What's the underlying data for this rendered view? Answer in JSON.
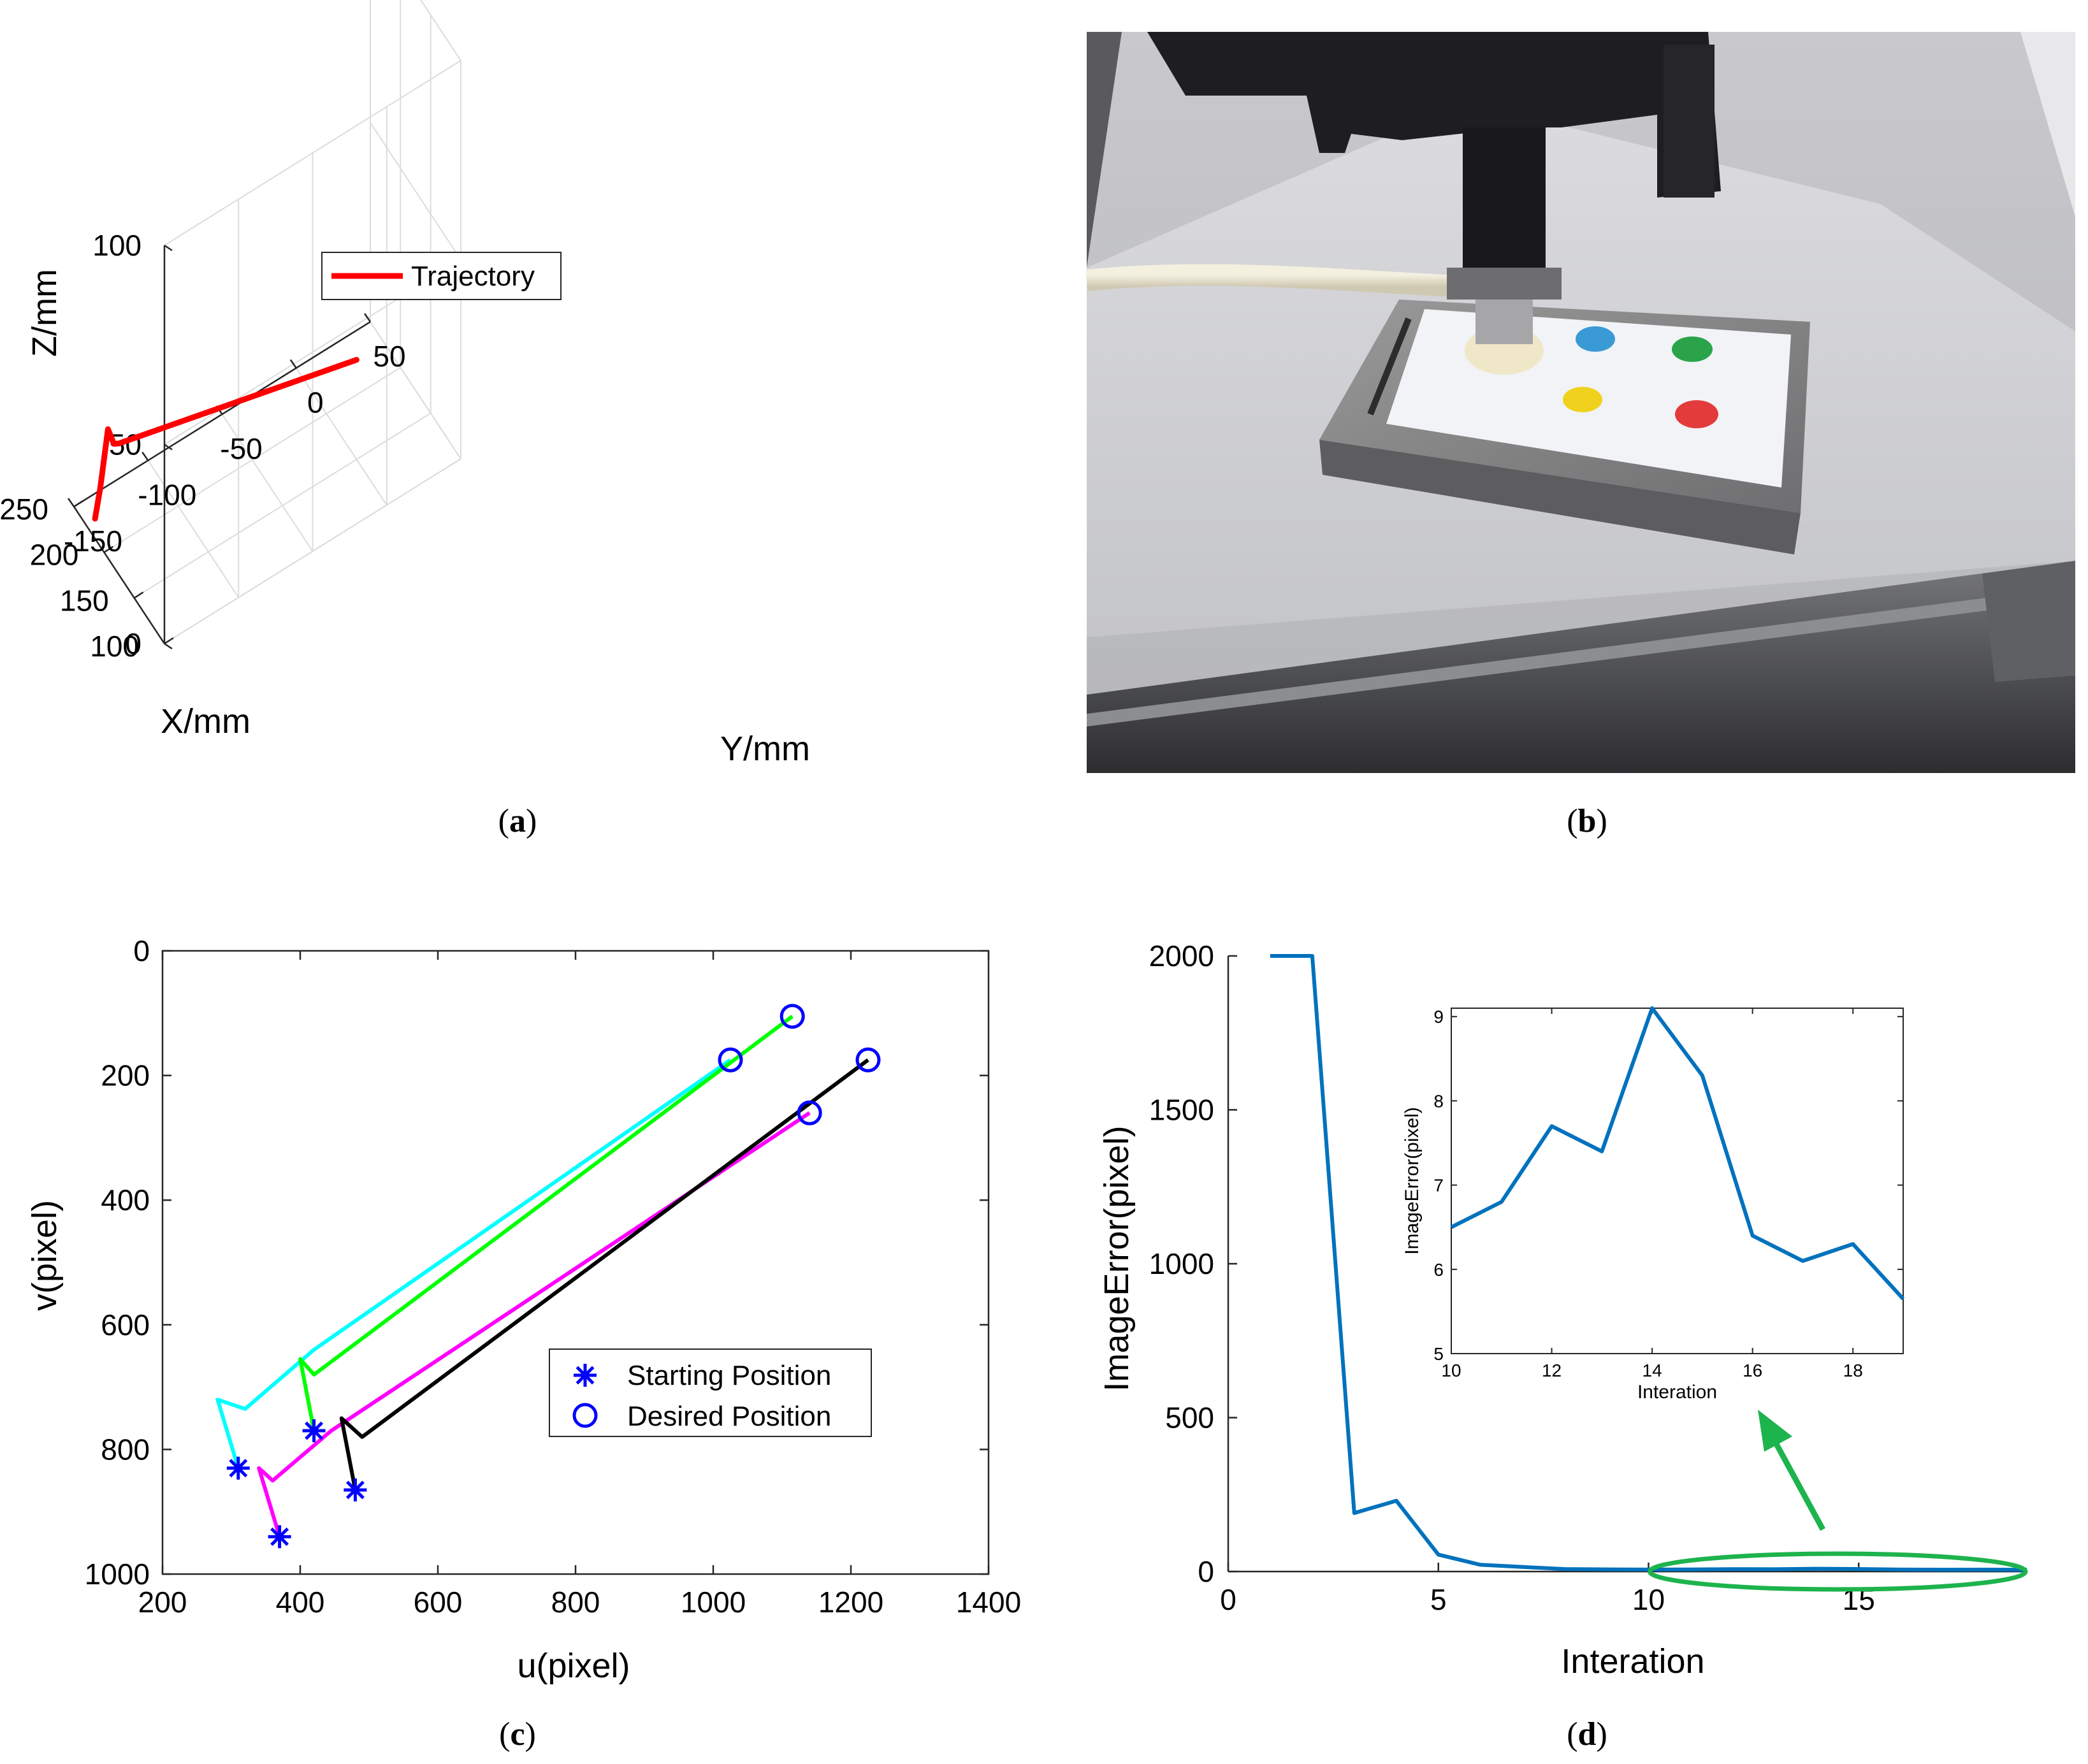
{
  "chart_data": [
    {
      "id": "a",
      "type": "line",
      "projection": "3d",
      "caption": "a",
      "xlabel": "X/mm",
      "ylabel": "Y/mm",
      "zlabel": "Z/mm",
      "xlim": [
        100,
        250
      ],
      "ylim": [
        -150,
        50
      ],
      "zlim": [
        0,
        100
      ],
      "x_ticks": [
        100,
        150,
        200,
        250
      ],
      "y_ticks": [
        -150,
        -100,
        -50,
        0,
        50
      ],
      "z_ticks": [
        0,
        50,
        100
      ],
      "legend": [
        "Trajectory"
      ],
      "series": [
        {
          "name": "Trajectory",
          "color": "#ff0000",
          "points": [
            {
              "x": 215,
              "y": -150,
              "z": 5
            },
            {
              "x": 214,
              "y": -147,
              "z": 12
            },
            {
              "x": 201,
              "y": -147,
              "z": 30
            },
            {
              "x": 196,
              "y": -145,
              "z": 27
            },
            {
              "x": 200,
              "y": -140,
              "z": 25
            },
            {
              "x": 150,
              "y": 0,
              "z": 25
            }
          ]
        }
      ]
    },
    {
      "id": "b",
      "type": "image",
      "caption": "b"
    },
    {
      "id": "c",
      "type": "line",
      "caption": "c",
      "xlabel": "u(pixel)",
      "ylabel": "v(pixel)",
      "xlim": [
        200,
        1400
      ],
      "ylim": [
        0,
        1000
      ],
      "y_reversed": true,
      "x_ticks": [
        200,
        400,
        600,
        800,
        1000,
        1200,
        1400
      ],
      "y_ticks": [
        0,
        200,
        400,
        600,
        800,
        1000
      ],
      "legend": [
        "Starting Position",
        "Desired Position"
      ],
      "marker_color": "#0000ff",
      "series": [
        {
          "name": "cyan",
          "color": "#00ffff",
          "points": [
            [
              310,
              830
            ],
            [
              280,
              720
            ],
            [
              320,
              735
            ],
            [
              420,
              640
            ],
            [
              1025,
              175
            ]
          ]
        },
        {
          "name": "green",
          "color": "#00ff00",
          "points": [
            [
              420,
              770
            ],
            [
              400,
              655
            ],
            [
              420,
              680
            ],
            [
              1115,
              105
            ]
          ]
        },
        {
          "name": "magenta",
          "color": "#ff00ff",
          "points": [
            [
              370,
              940
            ],
            [
              340,
              830
            ],
            [
              360,
              850
            ],
            [
              445,
              770
            ],
            [
              1140,
              260
            ]
          ]
        },
        {
          "name": "black",
          "color": "#000000",
          "points": [
            [
              480,
              865
            ],
            [
              460,
              750
            ],
            [
              490,
              780
            ],
            [
              1225,
              175
            ]
          ]
        }
      ],
      "starting_points": [
        [
          310,
          830
        ],
        [
          420,
          770
        ],
        [
          370,
          940
        ],
        [
          480,
          865
        ]
      ],
      "desired_points": [
        [
          1025,
          175
        ],
        [
          1115,
          105
        ],
        [
          1140,
          260
        ],
        [
          1225,
          175
        ]
      ]
    },
    {
      "id": "d",
      "type": "line",
      "caption": "d",
      "xlabel": "Interation",
      "ylabel": "ImageError(pixel)",
      "xlim": [
        0,
        19
      ],
      "ylim": [
        0,
        2000
      ],
      "x_ticks": [
        0,
        5,
        10,
        15
      ],
      "y_ticks": [
        0,
        500,
        1000,
        1500,
        2000
      ],
      "color": "#0072bd",
      "x": [
        1,
        2,
        3,
        4,
        5,
        6,
        7,
        8,
        9,
        10,
        11,
        12,
        13,
        14,
        15,
        16,
        17,
        18,
        19
      ],
      "values": [
        2000,
        2000,
        190,
        230,
        55,
        22,
        15,
        8,
        7,
        6.5,
        6.8,
        7.7,
        7.4,
        9.1,
        8.3,
        6.4,
        6.1,
        6.3,
        5.7
      ],
      "annotation": {
        "ellipse_color": "#1db34d",
        "arrow_color": "#1db34d",
        "ellipse_x_range": [
          10,
          19
        ]
      },
      "inset": {
        "xlabel": "Interation",
        "ylabel": "ImageError(pixel)",
        "xlim": [
          10,
          19
        ],
        "ylim": [
          5,
          9.1
        ],
        "x_ticks": [
          10,
          12,
          14,
          16,
          18
        ],
        "y_ticks": [
          5,
          6,
          7,
          8,
          9
        ],
        "x": [
          10,
          11,
          12,
          13,
          14,
          15,
          16,
          17,
          18,
          19
        ],
        "values": [
          6.5,
          6.8,
          7.7,
          7.4,
          9.1,
          8.3,
          6.4,
          6.1,
          6.3,
          5.65
        ]
      }
    }
  ]
}
